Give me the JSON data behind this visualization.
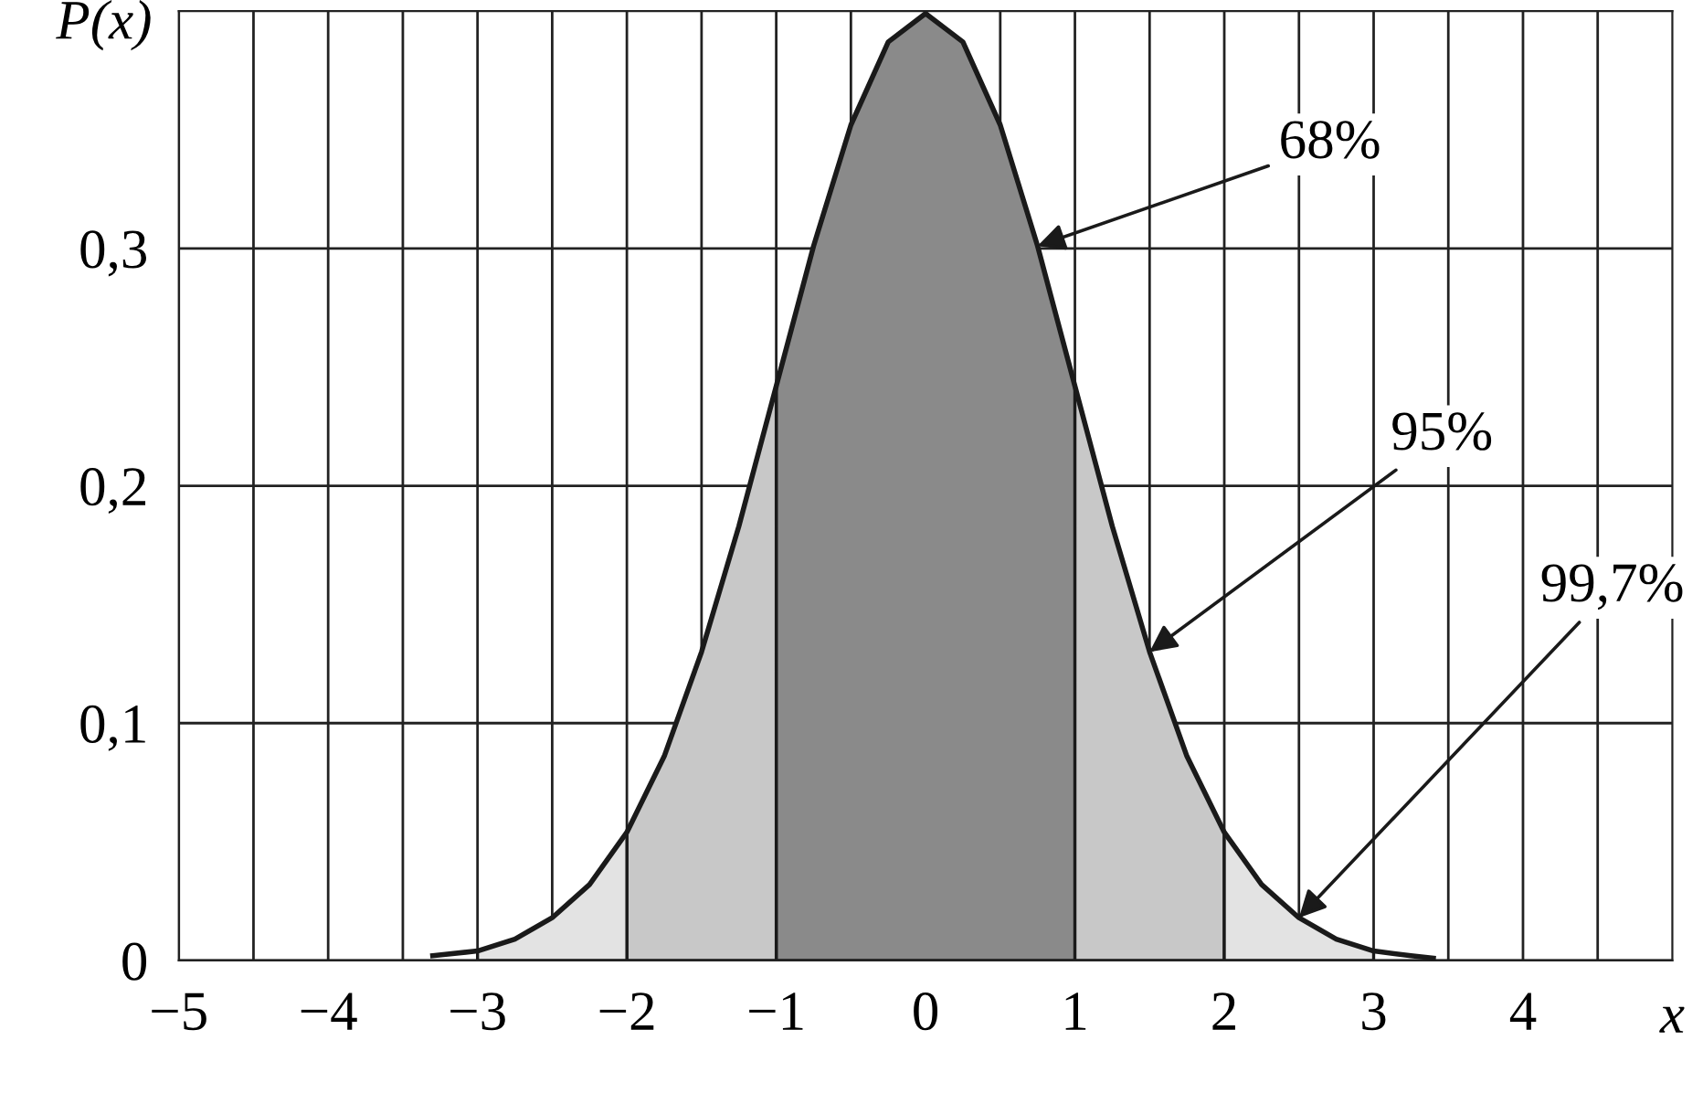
{
  "chart_data": {
    "type": "line",
    "xlabel": "x",
    "ylabel": "P(x)",
    "xlim": [
      -5,
      5
    ],
    "ylim": [
      0,
      0.4
    ],
    "xticks": [
      {
        "value": -5,
        "label": "−5"
      },
      {
        "value": -4.5,
        "label": null
      },
      {
        "value": -4,
        "label": "−4"
      },
      {
        "value": -3.5,
        "label": null
      },
      {
        "value": -3,
        "label": "−3"
      },
      {
        "value": -2.5,
        "label": null
      },
      {
        "value": -2,
        "label": "−2"
      },
      {
        "value": -1.5,
        "label": null
      },
      {
        "value": -1,
        "label": "−1"
      },
      {
        "value": -0.5,
        "label": null
      },
      0,
      {
        "value": 0.5,
        "label": null
      },
      1,
      {
        "value": 1.5,
        "label": null
      },
      2,
      {
        "value": 2.5,
        "label": null
      },
      3,
      {
        "value": 3.5,
        "label": null
      },
      4,
      {
        "value": 4.5,
        "label": null
      }
    ],
    "yticks": [
      0,
      {
        "value": 0.1,
        "label": "0,1"
      },
      {
        "value": 0.2,
        "label": "0,2"
      },
      {
        "value": 0.3,
        "label": "0,3"
      }
    ],
    "grid": true,
    "series": [
      {
        "type": "area",
        "color": "#8a8a8a",
        "x": [
          -1,
          -0.75,
          -0.5,
          -0.25,
          0,
          0.25,
          0.5,
          0.75,
          1
        ],
        "values": [
          0.242,
          0.301,
          0.352,
          0.387,
          0.399,
          0.387,
          0.352,
          0.301,
          0.242
        ]
      },
      {
        "type": "area",
        "color": "#c8c8c8",
        "x": [
          -2,
          -1.75,
          -1.5,
          -1.25,
          -1
        ],
        "values": [
          0.054,
          0.086,
          0.13,
          0.183,
          0.242
        ]
      },
      {
        "type": "area",
        "color": "#c8c8c8",
        "x": [
          1,
          1.25,
          1.5,
          1.75,
          2
        ],
        "values": [
          0.242,
          0.183,
          0.13,
          0.086,
          0.054
        ]
      },
      {
        "type": "area",
        "color": "#e3e3e3",
        "x": [
          -3,
          -2.75,
          -2.5,
          -2.25,
          -2
        ],
        "values": [
          0.004,
          0.009,
          0.018,
          0.032,
          0.054
        ]
      },
      {
        "type": "area",
        "color": "#e3e3e3",
        "x": [
          2,
          2.25,
          2.5,
          2.75,
          3
        ],
        "values": [
          0.054,
          0.032,
          0.018,
          0.009,
          0.004
        ]
      },
      {
        "color": "#1a1a1a",
        "x": [
          -3.3,
          -3,
          -2.75,
          -2.5,
          -2.25,
          -2,
          -1.75,
          -1.5,
          -1.25,
          -1,
          -0.75,
          -0.5,
          -0.25,
          0,
          0.25,
          0.5,
          0.75,
          1,
          1.25,
          1.5,
          1.75,
          2,
          2.25,
          2.5,
          2.75,
          3,
          3.25,
          3.4
        ],
        "values": [
          0.002,
          0.004,
          0.009,
          0.018,
          0.032,
          0.054,
          0.086,
          0.13,
          0.183,
          0.242,
          0.301,
          0.352,
          0.387,
          0.399,
          0.387,
          0.352,
          0.301,
          0.242,
          0.183,
          0.13,
          0.086,
          0.054,
          0.032,
          0.018,
          0.009,
          0.004,
          0.002,
          0.001
        ]
      }
    ],
    "annotations": [
      {
        "text": "68%",
        "x": 0.75,
        "y": 0.301
      },
      {
        "text": "95%",
        "x": 1.5,
        "y": 0.13
      },
      {
        "text": "99,7%",
        "x": 2.5,
        "y": 0.018
      }
    ]
  }
}
